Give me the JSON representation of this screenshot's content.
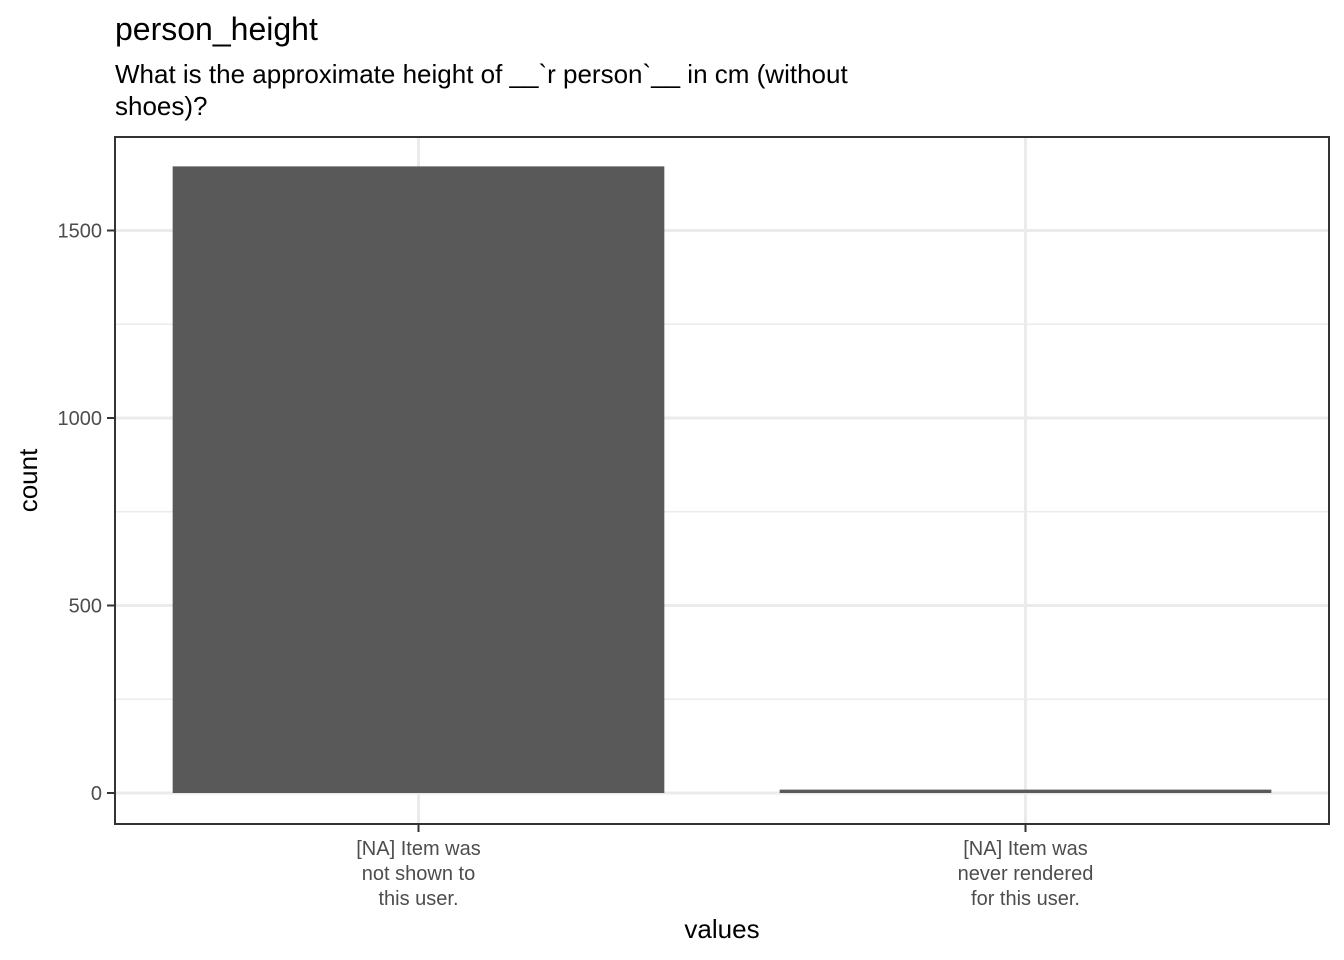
{
  "chart_data": {
    "type": "bar",
    "title": "person_height",
    "subtitle_lines": [
      "What is the approximate height of __`r person`__ in cm (without",
      "shoes)?"
    ],
    "xlabel": "values",
    "ylabel": "count",
    "categories": [
      [
        "[NA] Item was",
        "not shown to",
        "this user."
      ],
      [
        "[NA] Item was",
        "never rendered",
        "for this user."
      ]
    ],
    "values": [
      1671,
      9
    ],
    "ylim": [
      -80,
      1710
    ],
    "yticks": [
      0,
      500,
      1000,
      1500
    ],
    "ytick_labels": [
      "0",
      "500",
      "1000",
      "1500"
    ],
    "grid": true,
    "bar_color": "#595959"
  }
}
